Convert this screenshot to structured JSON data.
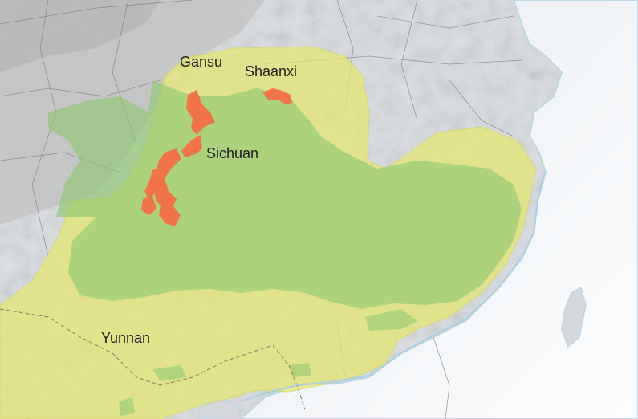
{
  "map": {
    "labels": {
      "gansu": "Gansu",
      "shaanxi": "Shaanxi",
      "sichuan": "Sichuan",
      "yunnan": "Yunnan"
    },
    "colors": {
      "background": "#d9dde1",
      "mountains": "#b9b9b9",
      "ocean": "#f4f7fa",
      "coast_edge": "#bcd7e6",
      "broad_range": "#e6e673",
      "core_range": "#8fca72",
      "highlight_range": "#f0734a",
      "province_border": "#8a8a6a",
      "admin_lines": "#777777"
    }
  }
}
